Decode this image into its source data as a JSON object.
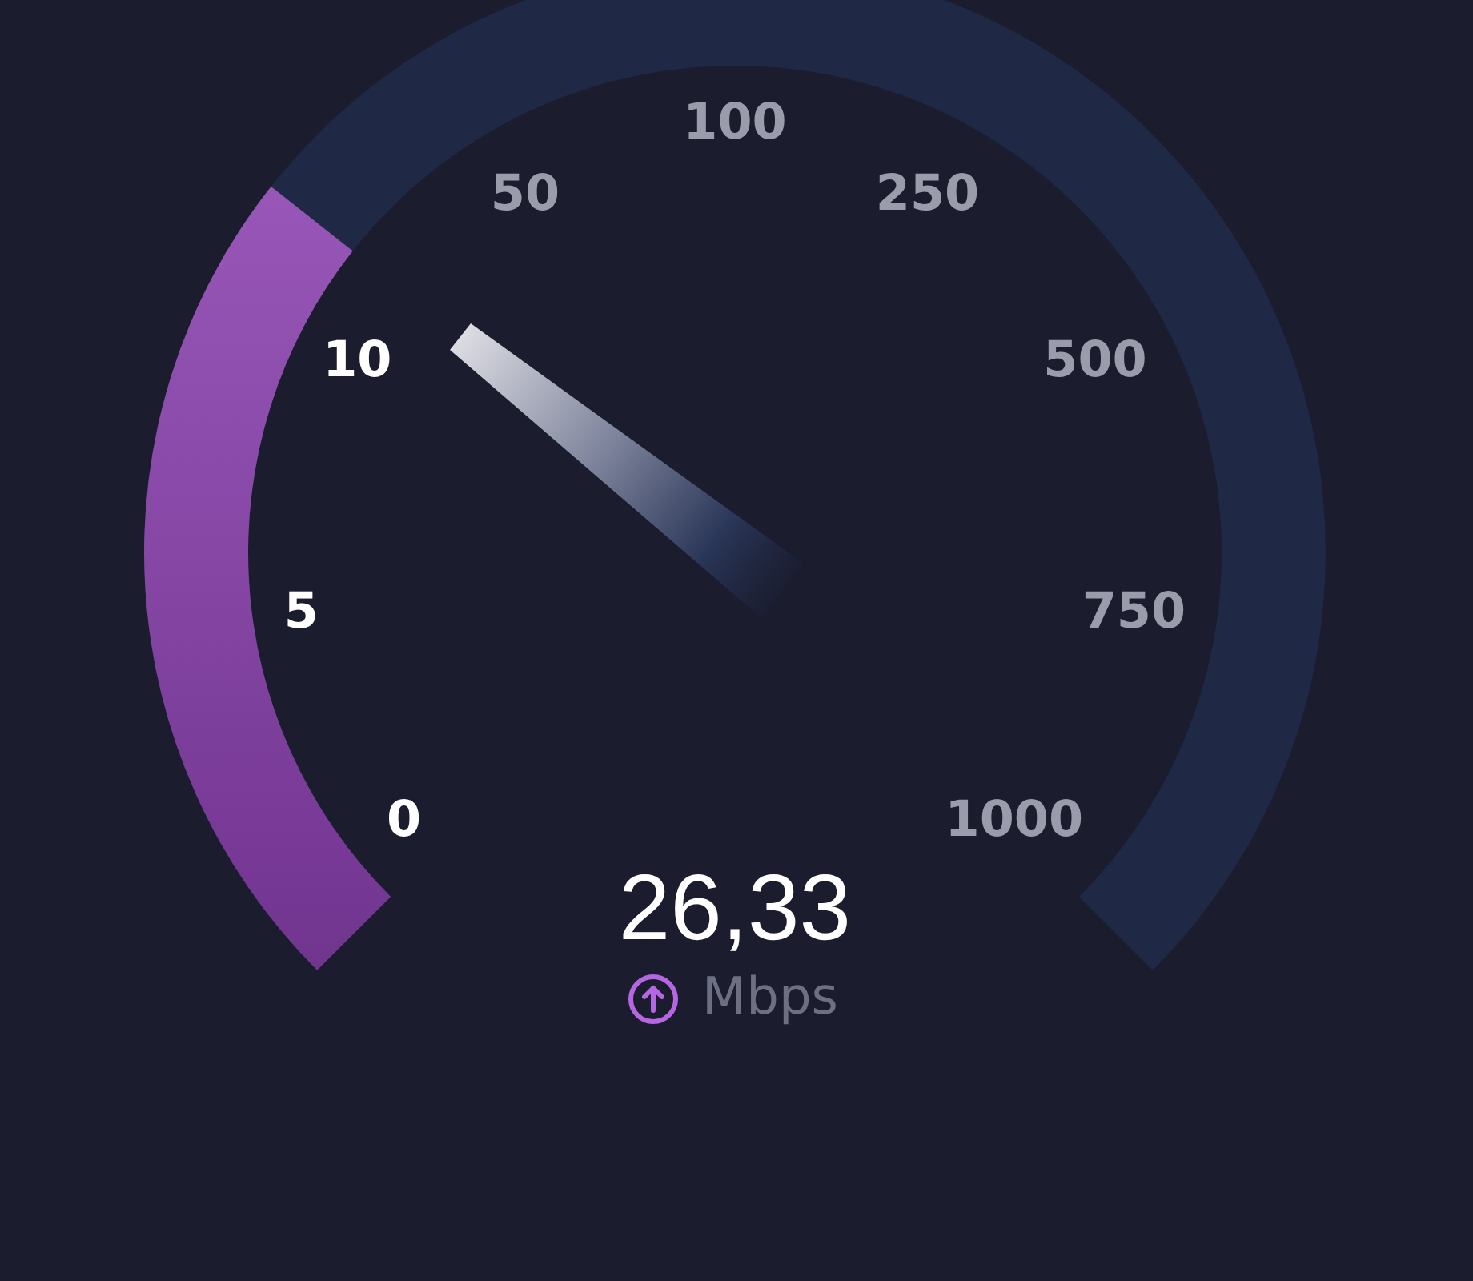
{
  "chart_data": {
    "type": "other",
    "values": [
      26.33
    ],
    "value_labels": [
      "26,33"
    ],
    "ylabel": "Mbps",
    "color": "#8a40ae",
    "annotations": [
      "0",
      "5",
      "10",
      "50",
      "100",
      "250",
      "500",
      "750",
      "1000"
    ]
  }
}
